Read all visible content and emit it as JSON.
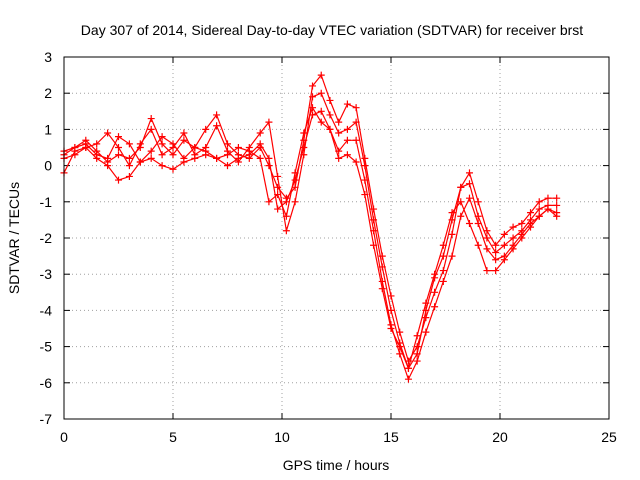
{
  "chart_data": {
    "type": "scatter",
    "title": "Day 307 of 2014, Sidereal Day-to-day VTEC variation (SDTVAR) for receiver brst",
    "xlabel": "GPS time / hours",
    "ylabel": "SDTVAR / TECUs",
    "xlim": [
      0,
      25
    ],
    "ylim": [
      -7,
      3
    ],
    "xticks": [
      0,
      5,
      10,
      15,
      20,
      25
    ],
    "yticks": [
      -7,
      -6,
      -5,
      -4,
      -3,
      -2,
      -1,
      0,
      1,
      2,
      3
    ],
    "grid": true,
    "marker": "+",
    "color": "#ff0000",
    "series": [
      {
        "x": [
          0.0,
          0.5,
          1.0,
          1.5,
          2.0,
          2.5,
          3.0,
          3.5,
          4.0,
          4.5,
          5.0,
          5.5,
          6.0,
          6.5,
          7.0,
          7.5,
          8.0,
          8.5,
          9.0,
          9.4,
          9.8,
          10.2,
          10.6,
          11.0,
          11.4,
          11.8,
          12.2,
          12.6,
          13.0,
          13.4,
          13.8,
          14.2,
          14.6,
          15.0,
          15.4,
          15.8,
          16.2,
          16.6,
          17.0,
          17.4,
          17.8,
          18.2,
          18.6,
          19.0,
          19.4,
          19.8,
          20.2,
          20.6,
          21.0,
          21.4,
          21.8,
          22.2,
          22.6
        ],
        "y": [
          0.3,
          0.5,
          0.7,
          0.4,
          0.1,
          0.3,
          0.2,
          0.5,
          1.3,
          0.6,
          0.3,
          0.7,
          0.5,
          1.0,
          1.4,
          0.6,
          0.3,
          0.2,
          0.5,
          0.0,
          -0.6,
          -0.9,
          -0.6,
          0.7,
          2.2,
          2.5,
          1.8,
          1.2,
          1.7,
          1.6,
          0.2,
          -1.2,
          -2.5,
          -3.6,
          -4.6,
          -5.4,
          -5.0,
          -4.2,
          -3.5,
          -2.9,
          -1.9,
          -0.6,
          -0.2,
          -1.0,
          -1.8,
          -2.2,
          -1.9,
          -1.7,
          -1.6,
          -1.3,
          -1.0,
          -0.9,
          -0.9
        ]
      },
      {
        "x": [
          0.0,
          0.5,
          1.0,
          1.5,
          2.0,
          2.5,
          3.0,
          3.5,
          4.0,
          4.5,
          5.0,
          5.5,
          6.0,
          6.5,
          7.0,
          7.5,
          8.0,
          8.5,
          9.0,
          9.4,
          9.8,
          10.2,
          10.6,
          11.0,
          11.4,
          11.8,
          12.2,
          12.6,
          13.0,
          13.4,
          13.8,
          14.2,
          14.6,
          15.0,
          15.4,
          15.8,
          16.2,
          16.6,
          17.0,
          17.4,
          17.8,
          18.2,
          18.6,
          19.0,
          19.4,
          19.8,
          20.2,
          20.6,
          21.0,
          21.4,
          21.8,
          22.2,
          22.6
        ],
        "y": [
          -0.2,
          0.4,
          0.5,
          0.2,
          0.0,
          -0.4,
          -0.3,
          0.1,
          0.2,
          0.0,
          -0.1,
          0.1,
          0.2,
          0.3,
          0.2,
          0.0,
          0.2,
          0.3,
          0.6,
          0.2,
          -1.2,
          -1.0,
          -0.4,
          0.5,
          1.4,
          1.5,
          1.0,
          0.4,
          0.7,
          0.7,
          -0.4,
          -1.8,
          -3.2,
          -4.4,
          -5.2,
          -5.9,
          -5.4,
          -4.6,
          -3.9,
          -3.2,
          -2.5,
          -1.4,
          -0.9,
          -1.6,
          -2.3,
          -2.6,
          -2.5,
          -2.2,
          -1.9,
          -1.6,
          -1.4,
          -1.2,
          -1.3
        ]
      },
      {
        "x": [
          0.0,
          0.5,
          1.0,
          1.5,
          2.0,
          2.5,
          3.0,
          3.5,
          4.0,
          4.5,
          5.0,
          5.5,
          6.0,
          6.5,
          7.0,
          7.5,
          8.0,
          8.5,
          9.0,
          9.4,
          9.8,
          10.2,
          10.6,
          11.0,
          11.4,
          11.8,
          12.2,
          12.6,
          13.0,
          13.4,
          13.8,
          14.2,
          14.6,
          15.0,
          15.4,
          15.8,
          16.2,
          16.6,
          17.0,
          17.4,
          17.8,
          18.2,
          18.6,
          19.0,
          19.4,
          19.8,
          20.2,
          20.6,
          21.0,
          21.4,
          21.8,
          22.2,
          22.6
        ],
        "y": [
          0.2,
          0.3,
          0.5,
          0.6,
          0.9,
          0.5,
          0.0,
          0.6,
          1.0,
          0.3,
          0.5,
          0.9,
          0.3,
          0.5,
          1.1,
          0.4,
          0.1,
          0.5,
          0.9,
          1.2,
          -0.3,
          -1.8,
          -1.0,
          0.3,
          1.9,
          2.0,
          1.4,
          0.9,
          1.0,
          1.2,
          0.0,
          -1.5,
          -2.8,
          -4.0,
          -4.9,
          -5.6,
          -5.2,
          -4.0,
          -3.1,
          -2.5,
          -1.5,
          -0.6,
          -0.5,
          -1.4,
          -2.0,
          -2.4,
          -2.2,
          -2.0,
          -1.8,
          -1.5,
          -1.2,
          -1.1,
          -1.1
        ]
      },
      {
        "x": [
          0.0,
          0.5,
          1.0,
          1.5,
          2.0,
          2.5,
          3.0,
          3.5,
          4.0,
          4.5,
          5.0,
          5.5,
          6.0,
          6.5,
          7.0,
          7.5,
          8.0,
          8.5,
          9.0,
          9.4,
          9.8,
          10.2,
          10.6,
          11.0,
          11.4,
          11.8,
          12.2,
          12.6,
          13.0,
          13.4,
          13.8,
          14.2,
          14.6,
          15.0,
          15.4,
          15.8,
          16.2,
          16.6,
          17.0,
          17.4,
          17.8,
          18.2,
          18.6,
          19.0,
          19.4,
          19.8,
          20.2,
          20.6,
          21.0,
          21.4,
          21.8,
          22.2,
          22.6
        ],
        "y": [
          0.4,
          0.5,
          0.6,
          0.3,
          0.2,
          0.8,
          0.6,
          0.1,
          0.4,
          0.8,
          0.6,
          0.2,
          0.5,
          0.4,
          0.2,
          0.3,
          0.5,
          0.4,
          0.2,
          -1.0,
          -0.8,
          -1.4,
          -0.2,
          0.9,
          1.6,
          1.2,
          1.0,
          0.2,
          0.3,
          0.1,
          -0.8,
          -2.2,
          -3.4,
          -4.5,
          -5.0,
          -5.6,
          -4.7,
          -3.8,
          -3.0,
          -2.2,
          -1.3,
          -1.0,
          -1.6,
          -2.2,
          -2.9,
          -2.9,
          -2.6,
          -2.3,
          -2.0,
          -1.7,
          -1.4,
          -1.2,
          -1.4
        ]
      }
    ]
  }
}
